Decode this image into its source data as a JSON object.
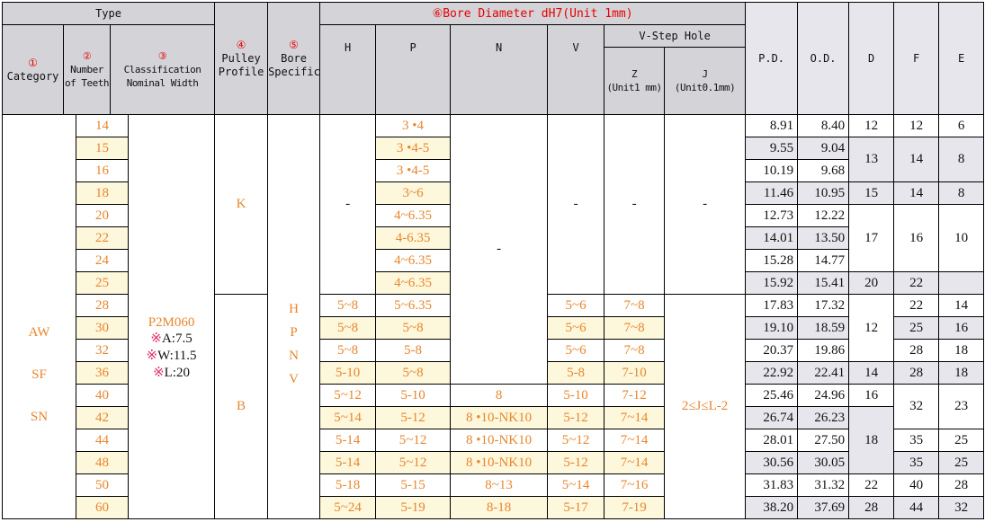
{
  "header": {
    "type": "Type",
    "category_num": "①",
    "category": "Category",
    "teeth_num": "②",
    "teeth": "Number of Teeth",
    "classification_num": "③",
    "classification": "Classification Nominal Width",
    "pulley_num": "④",
    "pulley": "Pulley Profile",
    "bore_spec_num": "⑤",
    "bore_spec": "Bore Specification",
    "bore_diameter": "⑥Bore Diameter dH7(Unit 1mm)",
    "h": "H",
    "p": "P",
    "n": "N",
    "v": "V",
    "v_step": "V-Step Hole",
    "z": "Z",
    "z_unit": "(Unit1 mm)",
    "j": "J",
    "j_unit": "(Unit0.1mm)",
    "pd": "P.D.",
    "od": "O.D.",
    "d": "D",
    "f": "F",
    "e": "E"
  },
  "colors": {
    "orange": "#e8862e",
    "red": "#e60000",
    "cream": "#fdf7dc",
    "gray": "#e6e6ec",
    "header": "#d4d3d8"
  },
  "body": {
    "category": [
      {
        "lines": [
          "AW",
          "SF",
          "SN"
        ],
        "span": 18
      }
    ],
    "teeth": [
      "14",
      "15",
      "16",
      "18",
      "20",
      "22",
      "24",
      "25",
      "28",
      "30",
      "32",
      "36",
      "40",
      "42",
      "44",
      "48",
      "50",
      "60"
    ],
    "classification": {
      "main": "P2M060",
      "mark": "※",
      "notes": [
        "A:7.5",
        "W:11.5",
        "L:20"
      ]
    },
    "pulley": [
      {
        "text": "K",
        "span": 8
      },
      {
        "text": "B",
        "span": 10
      }
    ],
    "bore_spec": [
      "H",
      "P",
      "N",
      "V"
    ],
    "H": [
      {
        "text": "-",
        "span": 8
      },
      "5~8",
      "5~8",
      "5~8",
      "5-10",
      "5~12",
      "5~14",
      "5-14",
      "5-14",
      "5-18",
      "5~24"
    ],
    "P": [
      "3 •4",
      "3 •4-5",
      "3 •4-5",
      "3~6",
      "4~6.35",
      "4-6.35",
      "4~6.35",
      "4~6.35",
      "5~6.35",
      "5~8",
      "5-8",
      "5~8",
      "5-10",
      "5-12",
      "5~12",
      "5~12",
      "5-15",
      "5-19"
    ],
    "N": [
      {
        "text": "-",
        "span": 12
      },
      "8",
      "8 •10-NK10",
      "8 •10-NK10",
      "8 •10-NK10",
      "8~13",
      "8-18"
    ],
    "V": [
      {
        "text": "-",
        "span": 8
      },
      "5~6",
      "5~6",
      "5~6",
      "5-8",
      "5-10",
      "5-12",
      "5~12",
      "5-12",
      "5~14",
      "5-17"
    ],
    "Z": [
      {
        "text": "-",
        "span": 8
      },
      "7~8",
      "7~8",
      "7~8",
      "7-10",
      "7-12",
      "7~14",
      "7~14",
      "7~14",
      "7~16",
      "7-19"
    ],
    "J": [
      {
        "text": "-",
        "span": 8
      },
      {
        "text": "2≤J≤L-2",
        "span": 10
      }
    ],
    "PD": [
      "8.91",
      "9.55",
      "10.19",
      "11.46",
      "12.73",
      "14.01",
      "15.28",
      "15.92",
      "17.83",
      "19.10",
      "20.37",
      "22.92",
      "25.46",
      "26.74",
      "28.01",
      "30.56",
      "31.83",
      "38.20"
    ],
    "OD": [
      "8.40",
      "9.04",
      "9.68",
      "10.95",
      "12.22",
      "13.50",
      "14.77",
      "15.41",
      "17.32",
      "18.59",
      "19.86",
      "22.41",
      "24.96",
      "26.23",
      "27.50",
      "30.05",
      "31.32",
      "37.69"
    ],
    "D": [
      "12",
      {
        "text": "13",
        "span": 2
      },
      "15",
      {
        "text": "17",
        "span": 3
      },
      "20",
      {
        "text": "12",
        "span": 3
      },
      "14",
      "16",
      {
        "text": "18",
        "span": 3
      },
      "22",
      "28"
    ],
    "F": [
      "12",
      {
        "text": "14",
        "span": 2
      },
      "14",
      {
        "text": "16",
        "span": 3
      },
      "22",
      "22",
      "25",
      "28",
      "28",
      {
        "text": "32",
        "span": 2
      },
      "35",
      "35",
      "40",
      "44"
    ],
    "E": [
      "6",
      {
        "text": "8",
        "span": 2
      },
      "8",
      {
        "text": "10",
        "span": 3
      },
      "",
      "14",
      "16",
      "18",
      "18",
      {
        "text": "23",
        "span": 2
      },
      "25",
      "25",
      "28",
      "32"
    ]
  }
}
